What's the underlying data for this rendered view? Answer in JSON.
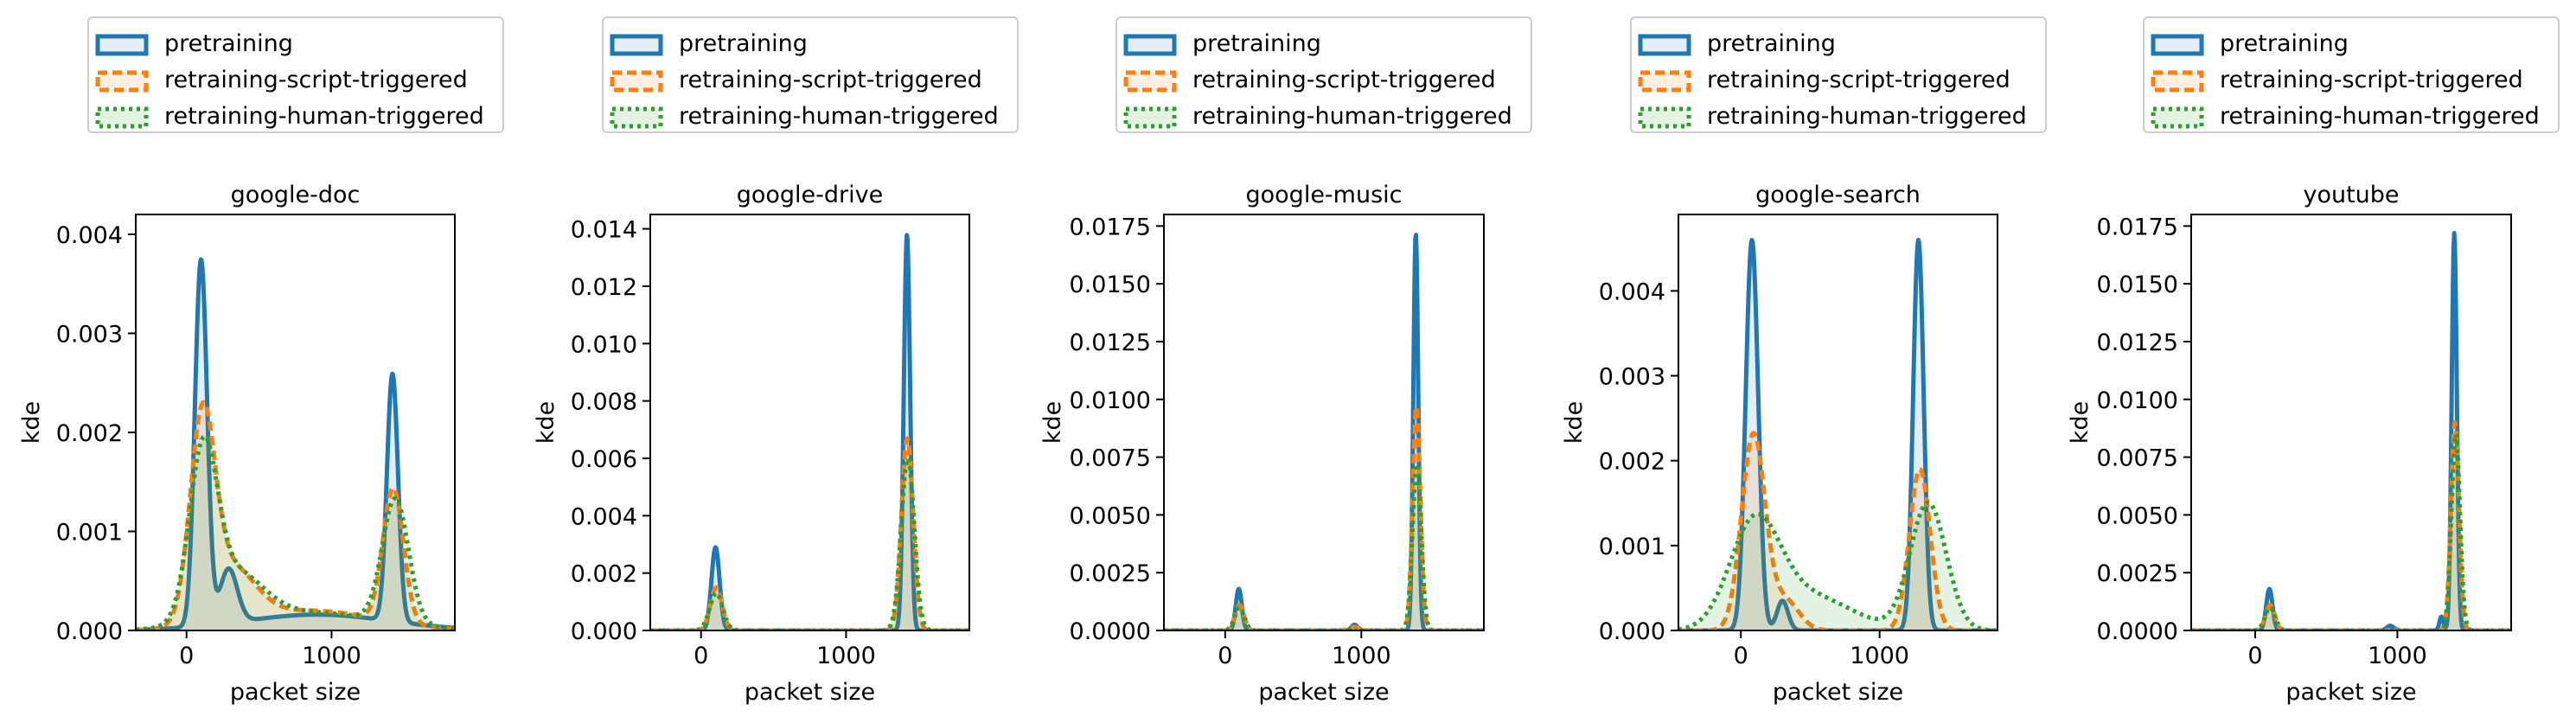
{
  "colors": {
    "pretraining": "#1f77b4",
    "script": "#ff7f0e",
    "human": "#2ca02c"
  },
  "legend": {
    "placement": "above each panel",
    "entries": [
      "pretraining",
      "retraining-script-triggered",
      "retraining-human-triggered"
    ]
  },
  "chart_data": [
    {
      "type": "area",
      "title": "google-doc",
      "xlabel": "packet size",
      "ylabel": "kde",
      "xlim": [
        -350,
        1850
      ],
      "ylim": [
        0,
        0.0042
      ],
      "xticks": [
        0,
        1000
      ],
      "xtick_labels": [
        "0",
        "1000"
      ],
      "yticks": [
        0,
        0.001,
        0.002,
        0.003,
        0.004
      ],
      "ytick_labels": [
        "0.000",
        "0.001",
        "0.002",
        "0.003",
        "0.004"
      ],
      "series": [
        {
          "name": "pretraining",
          "style": "solid",
          "fill": true,
          "peaks": [
            [
              100,
              0.0037,
              42
            ],
            [
              290,
              0.00055,
              60
            ],
            [
              900,
              0.00016,
              500
            ],
            [
              1420,
              0.0025,
              38
            ]
          ]
        },
        {
          "name": "retraining-script-triggered",
          "style": "dashed",
          "fill": true,
          "peaks": [
            [
              110,
              0.00195,
              85
            ],
            [
              300,
              0.00055,
              170
            ],
            [
              850,
              0.0002,
              450
            ],
            [
              1425,
              0.00135,
              70
            ]
          ]
        },
        {
          "name": "retraining-human-triggered",
          "style": "dotted",
          "fill": true,
          "peaks": [
            [
              115,
              0.0016,
              95
            ],
            [
              320,
              0.0005,
              200
            ],
            [
              850,
              0.00018,
              480
            ],
            [
              1440,
              0.00125,
              90
            ]
          ]
        }
      ]
    },
    {
      "type": "area",
      "title": "google-drive",
      "xlabel": "packet size",
      "ylabel": "kde",
      "xlim": [
        -350,
        1850
      ],
      "ylim": [
        0,
        0.0145
      ],
      "xticks": [
        0,
        1000
      ],
      "xtick_labels": [
        "0",
        "1000"
      ],
      "yticks": [
        0,
        0.002,
        0.004,
        0.006,
        0.008,
        0.01,
        0.012,
        0.014
      ],
      "ytick_labels": [
        "0.000",
        "0.002",
        "0.004",
        "0.006",
        "0.008",
        "0.010",
        "0.012",
        "0.014"
      ],
      "series": [
        {
          "name": "pretraining",
          "style": "solid",
          "fill": true,
          "peaks": [
            [
              100,
              0.0029,
              28
            ],
            [
              1420,
              0.0138,
              22
            ]
          ]
        },
        {
          "name": "retraining-script-triggered",
          "style": "dashed",
          "fill": true,
          "peaks": [
            [
              105,
              0.0015,
              40
            ],
            [
              1422,
              0.0067,
              40
            ]
          ]
        },
        {
          "name": "retraining-human-triggered",
          "style": "dotted",
          "fill": true,
          "peaks": [
            [
              105,
              0.0013,
              45
            ],
            [
              1425,
              0.006,
              45
            ]
          ]
        }
      ]
    },
    {
      "type": "area",
      "title": "google-music",
      "xlabel": "packet size",
      "ylabel": "kde",
      "xlim": [
        -450,
        1900
      ],
      "ylim": [
        0,
        0.018
      ],
      "xticks": [
        0,
        1000
      ],
      "xtick_labels": [
        "0",
        "1000"
      ],
      "yticks": [
        0,
        0.0025,
        0.005,
        0.0075,
        0.01,
        0.0125,
        0.015,
        0.0175
      ],
      "ytick_labels": [
        "0.0000",
        "0.0025",
        "0.0050",
        "0.0075",
        "0.0100",
        "0.0125",
        "0.0150",
        "0.0175"
      ],
      "series": [
        {
          "name": "pretraining",
          "style": "solid",
          "fill": true,
          "peaks": [
            [
              100,
              0.0018,
              22
            ],
            [
              1400,
              0.0172,
              18
            ],
            [
              950,
              0.00025,
              22
            ]
          ]
        },
        {
          "name": "retraining-script-triggered",
          "style": "dashed",
          "fill": true,
          "peaks": [
            [
              105,
              0.0011,
              32
            ],
            [
              1405,
              0.0097,
              28
            ],
            [
              950,
              0.00015,
              40
            ]
          ]
        },
        {
          "name": "retraining-human-triggered",
          "style": "dotted",
          "fill": true,
          "peaks": [
            [
              105,
              0.001,
              35
            ],
            [
              1408,
              0.0072,
              32
            ]
          ]
        }
      ]
    },
    {
      "type": "area",
      "title": "google-search",
      "xlabel": "packet size",
      "ylabel": "kde",
      "xlim": [
        -450,
        1850
      ],
      "ylim": [
        0,
        0.0049
      ],
      "xticks": [
        0,
        1000
      ],
      "xtick_labels": [
        "0",
        "1000"
      ],
      "yticks": [
        0,
        0.001,
        0.002,
        0.003,
        0.004
      ],
      "ytick_labels": [
        "0.000",
        "0.001",
        "0.002",
        "0.003",
        "0.004"
      ],
      "series": [
        {
          "name": "pretraining",
          "style": "solid",
          "fill": true,
          "peaks": [
            [
              80,
              0.0046,
              45
            ],
            [
              300,
              0.00035,
              40
            ],
            [
              1280,
              0.0046,
              38
            ]
          ]
        },
        {
          "name": "retraining-script-triggered",
          "style": "dashed",
          "fill": true,
          "peaks": [
            [
              90,
              0.0023,
              85
            ],
            [
              320,
              0.00035,
              100
            ],
            [
              1290,
              0.0019,
              75
            ]
          ]
        },
        {
          "name": "retraining-human-triggered",
          "style": "dotted",
          "fill": true,
          "peaks": [
            [
              100,
              0.0012,
              180
            ],
            [
              500,
              0.0004,
              300
            ],
            [
              1350,
              0.0015,
              130
            ]
          ]
        }
      ]
    },
    {
      "type": "area",
      "title": "youtube",
      "xlabel": "packet size",
      "ylabel": "kde",
      "xlim": [
        -450,
        1800
      ],
      "ylim": [
        0,
        0.018
      ],
      "xticks": [
        0,
        1000
      ],
      "xtick_labels": [
        "0",
        "1000"
      ],
      "yticks": [
        0,
        0.0025,
        0.005,
        0.0075,
        0.01,
        0.0125,
        0.015,
        0.0175
      ],
      "ytick_labels": [
        "0.0000",
        "0.0025",
        "0.0050",
        "0.0075",
        "0.0100",
        "0.0125",
        "0.0150",
        "0.0175"
      ],
      "series": [
        {
          "name": "pretraining",
          "style": "solid",
          "fill": true,
          "peaks": [
            [
              100,
              0.0018,
              22
            ],
            [
              1400,
              0.0172,
              18
            ],
            [
              1310,
              0.0006,
              14
            ],
            [
              950,
              0.0002,
              25
            ]
          ]
        },
        {
          "name": "retraining-script-triggered",
          "style": "dashed",
          "fill": true,
          "peaks": [
            [
              105,
              0.0011,
              32
            ],
            [
              1405,
              0.009,
              28
            ]
          ]
        },
        {
          "name": "retraining-human-triggered",
          "style": "dotted",
          "fill": true,
          "peaks": [
            [
              105,
              0.001,
              35
            ],
            [
              1410,
              0.0085,
              30
            ]
          ]
        }
      ]
    }
  ]
}
